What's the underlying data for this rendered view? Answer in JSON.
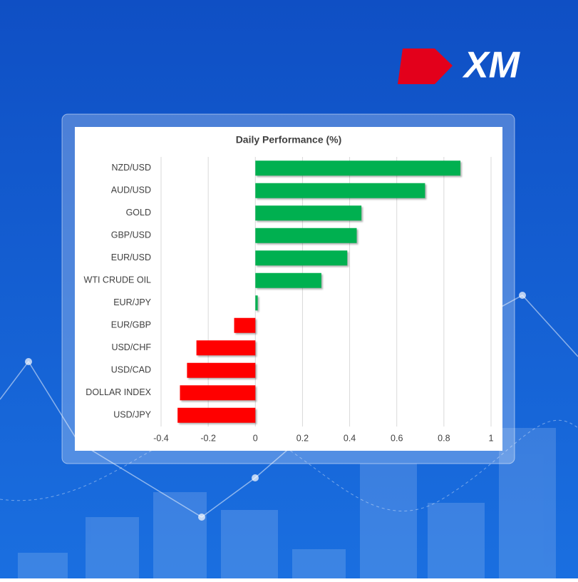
{
  "logo": "XM",
  "chart_data": {
    "type": "bar",
    "orientation": "horizontal",
    "title": "Daily Performance (%)",
    "categories": [
      "NZD/USD",
      "AUD/USD",
      "GOLD",
      "GBP/USD",
      "EUR/USD",
      "WTI CRUDE OIL",
      "EUR/JPY",
      "EUR/GBP",
      "USD/CHF",
      "USD/CAD",
      "DOLLAR INDEX",
      "USD/JPY"
    ],
    "values": [
      0.87,
      0.72,
      0.45,
      0.43,
      0.39,
      0.28,
      0.01,
      -0.09,
      -0.25,
      -0.29,
      -0.32,
      -0.33
    ],
    "positive_color": "#00b050",
    "negative_color": "#ff0000",
    "xlim": [
      -0.4,
      1
    ],
    "xticks": [
      -0.4,
      -0.2,
      0,
      0.2,
      0.4,
      0.6,
      0.8,
      1
    ],
    "grid": true
  }
}
